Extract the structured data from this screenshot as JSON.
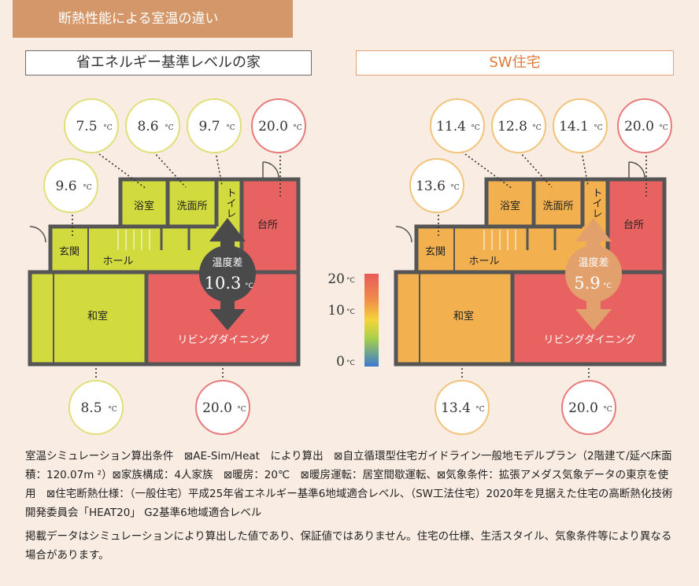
{
  "header": {
    "title": "断熱性能による室温の違い"
  },
  "left": {
    "title": "省エネルギー基準レベルの家",
    "temps": {
      "t1": "7.5",
      "t2": "8.6",
      "t3": "9.7",
      "t4": "20.0",
      "t5": "9.6",
      "t6": "8.5",
      "t7": "20.0"
    },
    "diff_label": "温度差",
    "diff_value": "10.3"
  },
  "right": {
    "title": "SW住宅",
    "temps": {
      "t1": "11.4",
      "t2": "12.8",
      "t3": "14.1",
      "t4": "20.0",
      "t5": "13.6",
      "t6": "13.4",
      "t7": "20.0"
    },
    "diff_label": "温度差",
    "diff_value": "5.9"
  },
  "unit": "°C",
  "rooms": {
    "bath": "浴室",
    "wash": "洗面所",
    "toilet": "トイレ",
    "kitchen": "台所",
    "entrance": "玄関",
    "hall": "ホール",
    "washitsu": "和室",
    "living": "リビングダイニング"
  },
  "scale": {
    "top": "20",
    "mid": "10",
    "bottom": "0"
  },
  "colors": {
    "cold_left": "#d2db3e",
    "warm": "#e86262",
    "cold_right": "#f3b04f",
    "arrow_left": "#4a4a4a",
    "arrow_right": "#e2a06c",
    "wall": "#555555"
  },
  "notes": {
    "p1": "室温シミュレーション算出条件　⊠AE-Sim/Heat　により算出　⊠自立循環型住宅ガイドライン一般地モデルプラン（2階建て/延べ床面積：120.07m ²）⊠家族構成：4人家族　⊠暖房：20℃　⊠暖房運転：居室間歇運転、⊠気象条件：拡張アメダス気象データの東京を使用　⊠住宅断熱仕様：（一般住宅）平成25年省エネルギー基準6地域適合レベル、（SW工法住宅）2020年を見据えた住宅の高断熱化技術開発委員会「HEAT20」 G2基準6地域適合レベル",
    "p2": "掲載データはシミュレーションにより算出した値であり、保証値ではありません。住宅の仕様、生活スタイル、気象条件等により異なる場合があります。"
  }
}
